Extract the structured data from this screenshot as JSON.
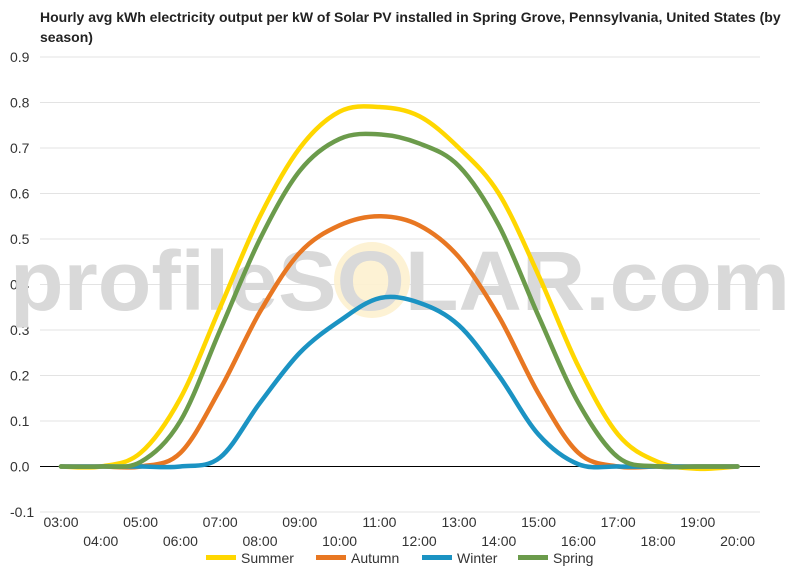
{
  "chart_data": {
    "type": "line",
    "title_line1": "Hourly avg kWh electricity output per kW of Solar PV installed in Spring Grove, Pennsylvania, United States (by",
    "title_line2": "season)",
    "watermark": "profileSOLAR.com",
    "ylim": [
      -0.1,
      0.9
    ],
    "yticks": [
      "-0.1",
      "0.0",
      "0.1",
      "0.2",
      "0.3",
      "0.4",
      "0.5",
      "0.6",
      "0.7",
      "0.8",
      "0.9"
    ],
    "x": [
      "03:00",
      "04:00",
      "05:00",
      "06:00",
      "07:00",
      "08:00",
      "09:00",
      "10:00",
      "11:00",
      "12:00",
      "13:00",
      "14:00",
      "15:00",
      "16:00",
      "17:00",
      "18:00",
      "19:00",
      "20:00"
    ],
    "grid": true,
    "legend_position": "bottom",
    "series": [
      {
        "name": "Summer",
        "color": "#FFD700",
        "values": [
          0.0,
          0.0,
          0.03,
          0.15,
          0.35,
          0.55,
          0.7,
          0.78,
          0.79,
          0.77,
          0.7,
          0.6,
          0.42,
          0.22,
          0.07,
          0.01,
          -0.005,
          0.0
        ]
      },
      {
        "name": "Autumn",
        "color": "#E87722",
        "values": [
          0.0,
          0.0,
          0.0,
          0.03,
          0.17,
          0.34,
          0.47,
          0.53,
          0.55,
          0.53,
          0.46,
          0.33,
          0.16,
          0.03,
          0.0,
          0.0,
          0.0,
          0.0
        ]
      },
      {
        "name": "Winter",
        "color": "#1B93C3",
        "values": [
          0.0,
          0.0,
          0.0,
          0.0,
          0.02,
          0.14,
          0.25,
          0.32,
          0.37,
          0.36,
          0.31,
          0.2,
          0.07,
          0.005,
          0.0,
          0.0,
          0.0,
          0.0
        ]
      },
      {
        "name": "Spring",
        "color": "#6B9B4B",
        "values": [
          0.0,
          0.0,
          0.01,
          0.1,
          0.3,
          0.5,
          0.65,
          0.72,
          0.73,
          0.71,
          0.66,
          0.53,
          0.33,
          0.14,
          0.02,
          0.0,
          0.0,
          0.0
        ]
      }
    ]
  }
}
